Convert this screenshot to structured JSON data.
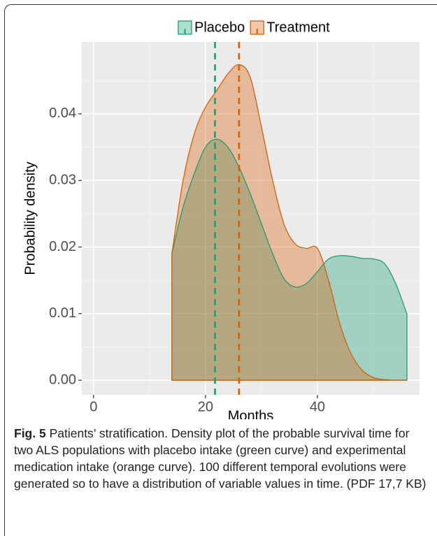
{
  "chart_data": {
    "type": "density",
    "x_label": "Months",
    "y_label": "Probability density",
    "x": [
      14,
      16,
      18,
      20,
      22,
      24,
      26,
      28,
      30,
      32,
      34,
      36,
      38,
      40,
      42,
      44,
      46,
      48,
      50,
      52,
      54,
      56
    ],
    "series": [
      {
        "name": "Placebo",
        "color": "#1b9e77",
        "mean": 21.7,
        "values": [
          0.019,
          0.026,
          0.031,
          0.035,
          0.0362,
          0.035,
          0.032,
          0.028,
          0.0235,
          0.019,
          0.0153,
          0.014,
          0.0145,
          0.0163,
          0.0182,
          0.0187,
          0.0186,
          0.0183,
          0.0182,
          0.0175,
          0.0145,
          0.0099
        ]
      },
      {
        "name": "Treatment",
        "color": "#d95f02",
        "mean": 26,
        "values": [
          0.019,
          0.03,
          0.037,
          0.041,
          0.0435,
          0.046,
          0.0474,
          0.0455,
          0.038,
          0.03,
          0.0235,
          0.0205,
          0.0198,
          0.0198,
          0.015,
          0.0085,
          0.004,
          0.0015,
          0.0004,
          0.0001,
          0,
          0
        ]
      }
    ],
    "xlim": [
      -2.1,
      58.25
    ],
    "xticks": [
      0,
      20,
      40
    ],
    "xminor": [
      10,
      30,
      50
    ],
    "ylim": [
      -0.0022,
      0.0508
    ],
    "yticks": [
      {
        "value": 0,
        "label": "0.00"
      },
      0.01,
      0.02,
      0.03,
      0.04
    ],
    "yminor": [
      0.005,
      0.015,
      0.025,
      0.035,
      0.045
    ],
    "grid": true,
    "legend": "top"
  },
  "caption": {
    "label": "Fig. 5",
    "text": "Patients’ stratification. Density plot of the probable survival time for two ALS populations with placebo intake (green curve) and experimental medication intake (orange curve). 100 different temporal evolutions were generated so to have a distribution of variable values in time. (PDF 17,7 KB)"
  }
}
